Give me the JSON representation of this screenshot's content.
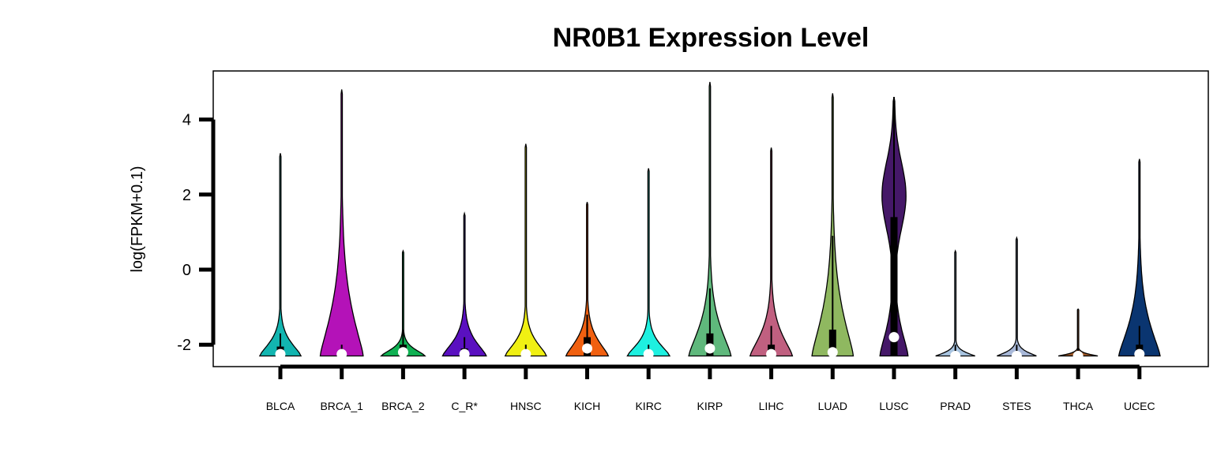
{
  "chart_data": {
    "type": "violin",
    "title": "NR0B1 Expression Level",
    "xlabel": "",
    "ylabel": "log(FPKM+0.1)",
    "ylim": [
      -2.6,
      5.3
    ],
    "yticks": [
      -2,
      0,
      2,
      4
    ],
    "ytick_labels": [
      "-2",
      "0",
      "2",
      "4"
    ],
    "grid": false,
    "legend": "none",
    "categories": [
      "BLCA",
      "BRCA_1",
      "BRCA_2",
      "C_R*",
      "HNSC",
      "KICH",
      "KIRC",
      "KIRP",
      "LIHC",
      "LUAD",
      "LUSC",
      "PRAD",
      "STES",
      "THCA",
      "UCEC"
    ],
    "series": [
      {
        "category": "BLCA",
        "color": "#12b5b0",
        "min": -2.3,
        "max": 3.1,
        "q1": -2.3,
        "median": -2.25,
        "q3": -2.05,
        "whisker_low": -2.3,
        "whisker_high": -1.7,
        "shape": "narrow-bulge",
        "density_peak_width": 0.8
      },
      {
        "category": "BRCA_1",
        "color": "#b412b8",
        "min": -2.3,
        "max": 4.8,
        "q1": -2.3,
        "median": -2.25,
        "q3": -2.2,
        "whisker_low": -2.3,
        "whisker_high": -2.0,
        "shape": "wide-spread",
        "density_peak_width": 0.85
      },
      {
        "category": "BRCA_2",
        "color": "#0fb052",
        "min": -2.3,
        "max": 0.5,
        "q1": -2.3,
        "median": -2.2,
        "q3": -2.0,
        "whisker_low": -2.3,
        "whisker_high": -1.6,
        "shape": "narrow-bulge",
        "density_peak_width": 0.85
      },
      {
        "category": "C_R*",
        "color": "#5a10c0",
        "min": -2.3,
        "max": 1.5,
        "q1": -2.3,
        "median": -2.25,
        "q3": -2.1,
        "whisker_low": -2.3,
        "whisker_high": -1.8,
        "shape": "medium-spread",
        "density_peak_width": 0.85
      },
      {
        "category": "HNSC",
        "color": "#f0f013",
        "min": -2.3,
        "max": 3.35,
        "q1": -2.3,
        "median": -2.25,
        "q3": -2.2,
        "whisker_low": -2.3,
        "whisker_high": -2.0,
        "shape": "narrow-bulge",
        "density_peak_width": 0.8
      },
      {
        "category": "KICH",
        "color": "#f06010",
        "min": -2.3,
        "max": 1.8,
        "q1": -2.3,
        "median": -2.1,
        "q3": -1.8,
        "whisker_low": -2.3,
        "whisker_high": -1.2,
        "shape": "medium-spread",
        "density_peak_width": 0.82
      },
      {
        "category": "KIRC",
        "color": "#1ef0e0",
        "min": -2.3,
        "max": 2.7,
        "q1": -2.3,
        "median": -2.25,
        "q3": -2.2,
        "whisker_low": -2.3,
        "whisker_high": -2.0,
        "shape": "narrow-bulge",
        "density_peak_width": 0.82
      },
      {
        "category": "KIRP",
        "color": "#5fb87c",
        "min": -2.3,
        "max": 5.0,
        "q1": -2.3,
        "median": -2.1,
        "q3": -1.7,
        "whisker_low": -2.3,
        "whisker_high": -0.5,
        "shape": "medium-spread",
        "density_peak_width": 0.82
      },
      {
        "category": "LIHC",
        "color": "#c06080",
        "min": -2.3,
        "max": 3.25,
        "q1": -2.3,
        "median": -2.25,
        "q3": -2.0,
        "whisker_low": -2.3,
        "whisker_high": -1.5,
        "shape": "medium-spread",
        "density_peak_width": 0.82
      },
      {
        "category": "LUAD",
        "color": "#8fb860",
        "min": -2.3,
        "max": 4.7,
        "q1": -2.3,
        "median": -2.2,
        "q3": -1.6,
        "whisker_low": -2.3,
        "whisker_high": 0.9,
        "shape": "wide-spread",
        "density_peak_width": 0.82
      },
      {
        "category": "LUSC",
        "color": "#451868",
        "min": -2.3,
        "max": 4.6,
        "q1": -2.3,
        "median": -1.8,
        "q3": 1.4,
        "whisker_low": -2.3,
        "whisker_high": 4.6,
        "shape": "bimodal",
        "density_peak_width": 0.82
      },
      {
        "category": "PRAD",
        "color": "#a8c4e0",
        "min": -2.3,
        "max": 0.5,
        "q1": -2.3,
        "median": -2.3,
        "q3": -2.2,
        "whisker_low": -2.3,
        "whisker_high": -2.0,
        "shape": "flat",
        "density_peak_width": 0.78
      },
      {
        "category": "STES",
        "color": "#a8b8d8",
        "min": -2.3,
        "max": 0.85,
        "q1": -2.3,
        "median": -2.3,
        "q3": -2.2,
        "whisker_low": -2.3,
        "whisker_high": -2.0,
        "shape": "flat",
        "density_peak_width": 0.78
      },
      {
        "category": "THCA",
        "color": "#a05a28",
        "min": -2.3,
        "max": -1.05,
        "q1": -2.3,
        "median": -2.3,
        "q3": -2.25,
        "whisker_low": -2.3,
        "whisker_high": -2.1,
        "shape": "very-flat",
        "density_peak_width": 0.78
      },
      {
        "category": "UCEC",
        "color": "#0a3570",
        "min": -2.3,
        "max": 2.95,
        "q1": -2.3,
        "median": -2.25,
        "q3": -2.0,
        "whisker_low": -2.3,
        "whisker_high": -1.5,
        "shape": "wide-spread",
        "density_peak_width": 0.82
      }
    ]
  }
}
